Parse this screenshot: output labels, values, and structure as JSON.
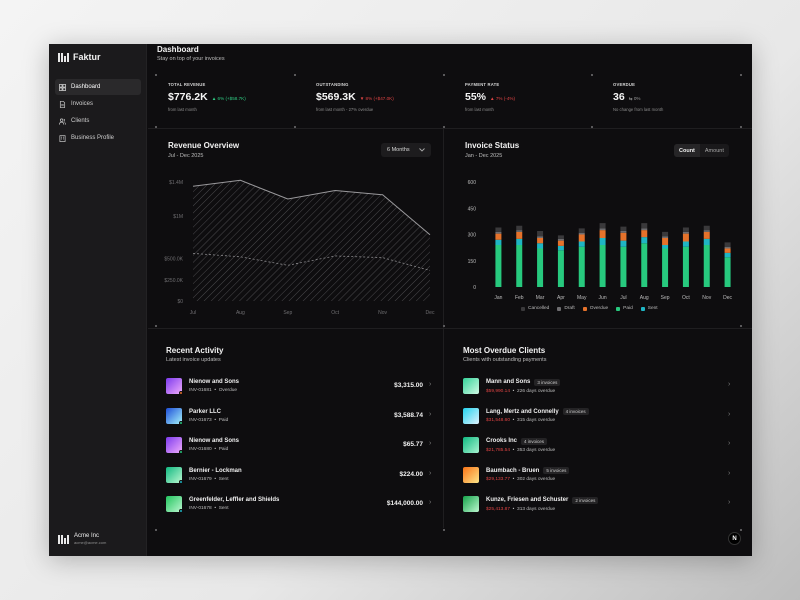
{
  "app": {
    "name": "Faktur"
  },
  "sidebar": {
    "items": [
      {
        "label": "Dashboard",
        "icon": "dashboard-icon",
        "active": true
      },
      {
        "label": "Invoices",
        "icon": "file-icon",
        "active": false
      },
      {
        "label": "Clients",
        "icon": "users-icon",
        "active": false
      },
      {
        "label": "Business Profile",
        "icon": "building-icon",
        "active": false
      }
    ],
    "account": {
      "name": "Acme Inc",
      "email": "acme@acme.com"
    }
  },
  "header": {
    "title": "Dashboard",
    "subtitle": "Stay on top of your invoices"
  },
  "kpis": [
    {
      "label": "TOTAL REVENUE",
      "value": "$776.2K",
      "delta": "▲ 6% (+$58.7K)",
      "tone": "up",
      "note": "from last month"
    },
    {
      "label": "OUTSTANDING",
      "value": "$569.3K",
      "delta": "▼ 8% (+$47.0K)",
      "tone": "down",
      "note": "from last month - 27% overdue"
    },
    {
      "label": "PAYMENT RATE",
      "value": "55%",
      "delta": "▲ 7% (-4%)",
      "tone": "down",
      "note": "from last month"
    },
    {
      "label": "OVERDUE",
      "value": "36",
      "delta": "⇆ 0%",
      "tone": "neutral",
      "note": "No change from last month"
    }
  ],
  "revenue": {
    "title": "Revenue Overview",
    "subtitle": "Jul - Dec 2025",
    "range_label": "6 Months"
  },
  "invoice_status": {
    "title": "Invoice Status",
    "subtitle": "Jan - Dec 2025",
    "toggle": [
      "Count",
      "Amount"
    ],
    "active_toggle": "Count"
  },
  "colors": {
    "cancelled": "#3a393b",
    "draft": "#6e6d70",
    "overdue": "#e5722b",
    "paid": "#27c97e",
    "sent": "#1fb5c4"
  },
  "chart_data": [
    {
      "type": "area",
      "title": "Revenue Overview",
      "x": [
        "Jul",
        "Aug",
        "Sep",
        "Oct",
        "Nov",
        "Dec"
      ],
      "y_ticks": [
        "$0",
        "$250.0K",
        "$500.0K",
        "$1M",
        "$1.4M"
      ],
      "ylim": [
        0,
        1400000
      ],
      "series": [
        {
          "values": [
            1350000,
            1420000,
            1200000,
            1300000,
            1250000,
            780000
          ]
        },
        {
          "values": [
            560000,
            520000,
            420000,
            530000,
            510000,
            360000
          ]
        }
      ]
    },
    {
      "type": "bar",
      "title": "Invoice Status",
      "categories": [
        "Jan",
        "Feb",
        "Mar",
        "Apr",
        "May",
        "Jun",
        "Jul",
        "Aug",
        "Sep",
        "Oct",
        "Nov",
        "Dec"
      ],
      "y_ticks": [
        "0",
        "150",
        "300",
        "450",
        "600"
      ],
      "ylim": [
        0,
        600
      ],
      "series": [
        {
          "name": "Paid",
          "values": [
            240,
            240,
            220,
            210,
            230,
            240,
            230,
            250,
            220,
            230,
            240,
            170
          ]
        },
        {
          "name": "Sent",
          "values": [
            30,
            35,
            30,
            25,
            30,
            40,
            35,
            35,
            20,
            30,
            35,
            25
          ]
        },
        {
          "name": "Overdue",
          "values": [
            35,
            40,
            30,
            30,
            40,
            45,
            45,
            40,
            40,
            45,
            40,
            25
          ]
        },
        {
          "name": "Draft",
          "values": [
            10,
            10,
            10,
            10,
            10,
            10,
            10,
            10,
            10,
            10,
            10,
            10
          ]
        },
        {
          "name": "Cancelled",
          "values": [
            25,
            25,
            30,
            20,
            25,
            30,
            25,
            30,
            25,
            25,
            25,
            25
          ]
        }
      ]
    }
  ],
  "recent_activity": {
    "title": "Recent Activity",
    "subtitle": "Latest invoice updates",
    "items": [
      {
        "name": "Nienow and Sons",
        "invoice": "INV-01681",
        "status": "Overdue",
        "amount": "$3,315.00",
        "grad": [
          "#7c3aed",
          "#f0abfc"
        ],
        "dot": "#e5722b"
      },
      {
        "name": "Parker LLC",
        "invoice": "INV-01673",
        "status": "Paid",
        "amount": "$3,588.74",
        "grad": [
          "#1d4ed8",
          "#a5f3fc"
        ],
        "dot": "#27c97e"
      },
      {
        "name": "Nienow and Sons",
        "invoice": "INV-01680",
        "status": "Paid",
        "amount": "$65.77",
        "grad": [
          "#7c3aed",
          "#f0abfc"
        ],
        "dot": "#27c97e"
      },
      {
        "name": "Bernier - Lockman",
        "invoice": "INV-01679",
        "status": "Sent",
        "amount": "$224.00",
        "grad": [
          "#10b981",
          "#bbf7d0"
        ],
        "dot": "#1fb5c4"
      },
      {
        "name": "Greenfelder, Leffler and Shields",
        "invoice": "INV-01678",
        "status": "Sent",
        "amount": "$144,000.00",
        "grad": [
          "#22c55e",
          "#bbf7d0"
        ],
        "dot": "#1fb5c4"
      }
    ]
  },
  "overdue_clients": {
    "title": "Most Overdue Clients",
    "subtitle": "Clients with outstanding payments",
    "items": [
      {
        "name": "Mann and Sons",
        "badge": "3 invoices",
        "amount": "$59,990.14",
        "days": "226 days overdue",
        "grad": [
          "#34d399",
          "#d1fae5"
        ]
      },
      {
        "name": "Lang, Mertz and Connelly",
        "badge": "4 invoices",
        "amount": "$31,548.60",
        "days": "315 days overdue",
        "grad": [
          "#22d3ee",
          "#e0f2fe"
        ]
      },
      {
        "name": "Crooks Inc",
        "badge": "4 invoices",
        "amount": "$21,785.54",
        "days": "353 days overdue",
        "grad": [
          "#10b981",
          "#a7f3d0"
        ]
      },
      {
        "name": "Baumbach - Bruen",
        "badge": "5 invoices",
        "amount": "$29,133.77",
        "days": "302 days overdue",
        "grad": [
          "#f97316",
          "#fde68a"
        ]
      },
      {
        "name": "Kunze, Friesen and Schuster",
        "badge": "2 invoices",
        "amount": "$25,413.87",
        "days": "313 days overdue",
        "grad": [
          "#16a34a",
          "#bbf7d0"
        ]
      }
    ]
  },
  "misc": {
    "corner_badge": "N"
  }
}
